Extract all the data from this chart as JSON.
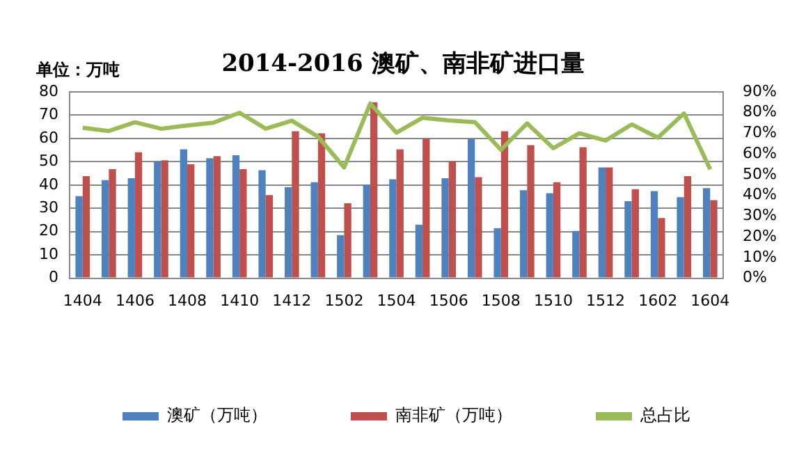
{
  "chart_data": {
    "type": "bar",
    "title": "2014-2016 澳矿、南非矿进口量",
    "ylabel": "单位：万吨",
    "categories": [
      "1404",
      null,
      "1406",
      null,
      "1408",
      null,
      "1410",
      null,
      "1412",
      null,
      "1502",
      null,
      "1504",
      null,
      "1506",
      null,
      "1508",
      null,
      "1510",
      null,
      "1512",
      null,
      "1602",
      null,
      "1604"
    ],
    "series": [
      {
        "name": "澳矿（万吨）",
        "color": "#4f81bd",
        "values": [
          35.2,
          42.1,
          42.9,
          50.2,
          55.3,
          51.5,
          52.8,
          46.4,
          39.1,
          41.2,
          18.5,
          40.1,
          42.5,
          23.0,
          42.9,
          59.8,
          21.5,
          37.8,
          36.5,
          20.3,
          47.6,
          33.1,
          37.4,
          34.8,
          38.7
        ]
      },
      {
        "name": "南非矿（万吨）",
        "color": "#c0504d",
        "values": [
          43.8,
          46.8,
          54.1,
          50.6,
          48.9,
          52.4,
          46.8,
          35.7,
          63.1,
          62.2,
          32.2,
          75.5,
          55.3,
          59.9,
          50.2,
          43.4,
          63.1,
          57.1,
          41.2,
          56.2,
          47.6,
          38.2,
          25.8,
          43.8,
          33.5
        ]
      },
      {
        "name": "总占比",
        "type": "line",
        "axis": "y2",
        "color": "#9bbb59",
        "values": [
          72.7,
          71.1,
          75.3,
          72.2,
          73.8,
          75.1,
          79.9,
          72.2,
          76.1,
          68.4,
          53.5,
          84.4,
          70.3,
          77.5,
          76.2,
          75.4,
          62.0,
          74.8,
          62.8,
          70.0,
          66.5,
          74.3,
          67.9,
          79.6,
          52.6
        ]
      }
    ],
    "ylim": [
      0,
      80
    ],
    "yticks": [
      0,
      10,
      20,
      30,
      40,
      50,
      60,
      70,
      80
    ],
    "y2lim": [
      0,
      90
    ],
    "y2ticks": [
      {
        "value": 0,
        "label": "0%"
      },
      {
        "value": 10,
        "label": "10%"
      },
      {
        "value": 20,
        "label": "20%"
      },
      {
        "value": 30,
        "label": "30%"
      },
      {
        "value": 40,
        "label": "40%"
      },
      {
        "value": 50,
        "label": "50%"
      },
      {
        "value": 60,
        "label": "60%"
      },
      {
        "value": 70,
        "label": "70%"
      },
      {
        "value": 80,
        "label": "80%"
      },
      {
        "value": 90,
        "label": "90%"
      }
    ],
    "grid": "y",
    "legend": "bottom",
    "marker": "none",
    "line_style": "solid"
  }
}
